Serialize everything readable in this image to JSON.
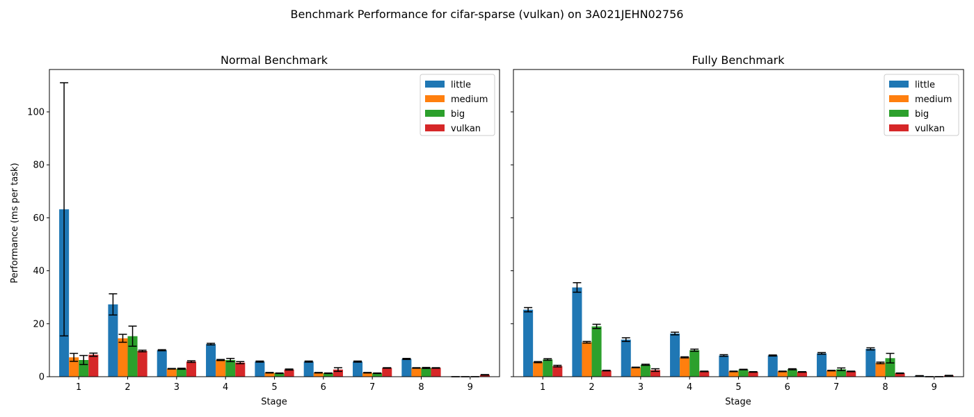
{
  "suptitle": "Benchmark Performance for cifar-sparse (vulkan) on 3A021JEHN02756",
  "colors": {
    "little": "#1f77b4",
    "medium": "#ff7f0e",
    "big": "#2ca02c",
    "vulkan": "#d62728"
  },
  "chart_data": [
    {
      "type": "bar",
      "title": "Normal Benchmark",
      "xlabel": "Stage",
      "ylabel": "Performance (ms per task)",
      "ylim": [
        0,
        116
      ],
      "yticks": [
        0,
        20,
        40,
        60,
        80,
        100
      ],
      "categories": [
        "1",
        "2",
        "3",
        "4",
        "5",
        "6",
        "7",
        "8",
        "9"
      ],
      "legend_position": "top-right",
      "series": [
        {
          "name": "little",
          "values": [
            63.2,
            27.3,
            10.0,
            12.3,
            5.7,
            5.7,
            5.7,
            6.7,
            0.0
          ],
          "errors": [
            47.8,
            4.0,
            0.2,
            0.3,
            0.2,
            0.2,
            0.2,
            0.2,
            0.0
          ]
        },
        {
          "name": "medium",
          "values": [
            7.3,
            14.5,
            3.0,
            6.3,
            1.5,
            1.5,
            1.5,
            3.3,
            0.0
          ],
          "errors": [
            1.5,
            1.5,
            0.1,
            0.2,
            0.1,
            0.1,
            0.1,
            0.1,
            0.0
          ]
        },
        {
          "name": "big",
          "values": [
            6.3,
            15.3,
            3.0,
            6.3,
            1.3,
            1.3,
            1.3,
            3.3,
            0.0
          ],
          "errors": [
            1.7,
            3.8,
            0.2,
            0.6,
            0.1,
            0.1,
            0.1,
            0.2,
            0.0
          ]
        },
        {
          "name": "vulkan",
          "values": [
            8.3,
            9.7,
            5.7,
            5.3,
            2.7,
            2.7,
            3.3,
            3.3,
            0.7
          ],
          "errors": [
            0.6,
            0.3,
            0.3,
            0.4,
            0.2,
            0.7,
            0.1,
            0.1,
            0.1
          ]
        }
      ]
    },
    {
      "type": "bar",
      "title": "Fully Benchmark",
      "xlabel": "Stage",
      "ylabel": "",
      "ylim": [
        0,
        116
      ],
      "yticks": [
        0,
        20,
        40,
        60,
        80,
        100
      ],
      "categories": [
        "1",
        "2",
        "3",
        "4",
        "5",
        "6",
        "7",
        "8",
        "9"
      ],
      "legend_position": "top-right",
      "series": [
        {
          "name": "little",
          "values": [
            25.3,
            33.7,
            14.0,
            16.3,
            8.0,
            8.0,
            8.8,
            10.5,
            0.3
          ],
          "errors": [
            0.8,
            1.8,
            0.7,
            0.5,
            0.3,
            0.2,
            0.3,
            0.4,
            0.1
          ]
        },
        {
          "name": "medium",
          "values": [
            5.5,
            13.0,
            3.5,
            7.3,
            2.0,
            2.0,
            2.3,
            5.2,
            0.0
          ],
          "errors": [
            0.2,
            0.3,
            0.1,
            0.2,
            0.1,
            0.1,
            0.1,
            0.3,
            0.0
          ]
        },
        {
          "name": "big",
          "values": [
            6.5,
            19.0,
            4.5,
            10.0,
            2.7,
            2.8,
            2.8,
            7.0,
            0.0
          ],
          "errors": [
            0.3,
            0.8,
            0.2,
            0.4,
            0.1,
            0.2,
            0.5,
            1.8,
            0.0
          ]
        },
        {
          "name": "vulkan",
          "values": [
            4.0,
            2.3,
            2.5,
            2.0,
            1.8,
            1.8,
            2.0,
            1.3,
            0.4
          ],
          "errors": [
            0.3,
            0.1,
            0.5,
            0.1,
            0.1,
            0.1,
            0.1,
            0.1,
            0.1
          ]
        }
      ]
    }
  ]
}
